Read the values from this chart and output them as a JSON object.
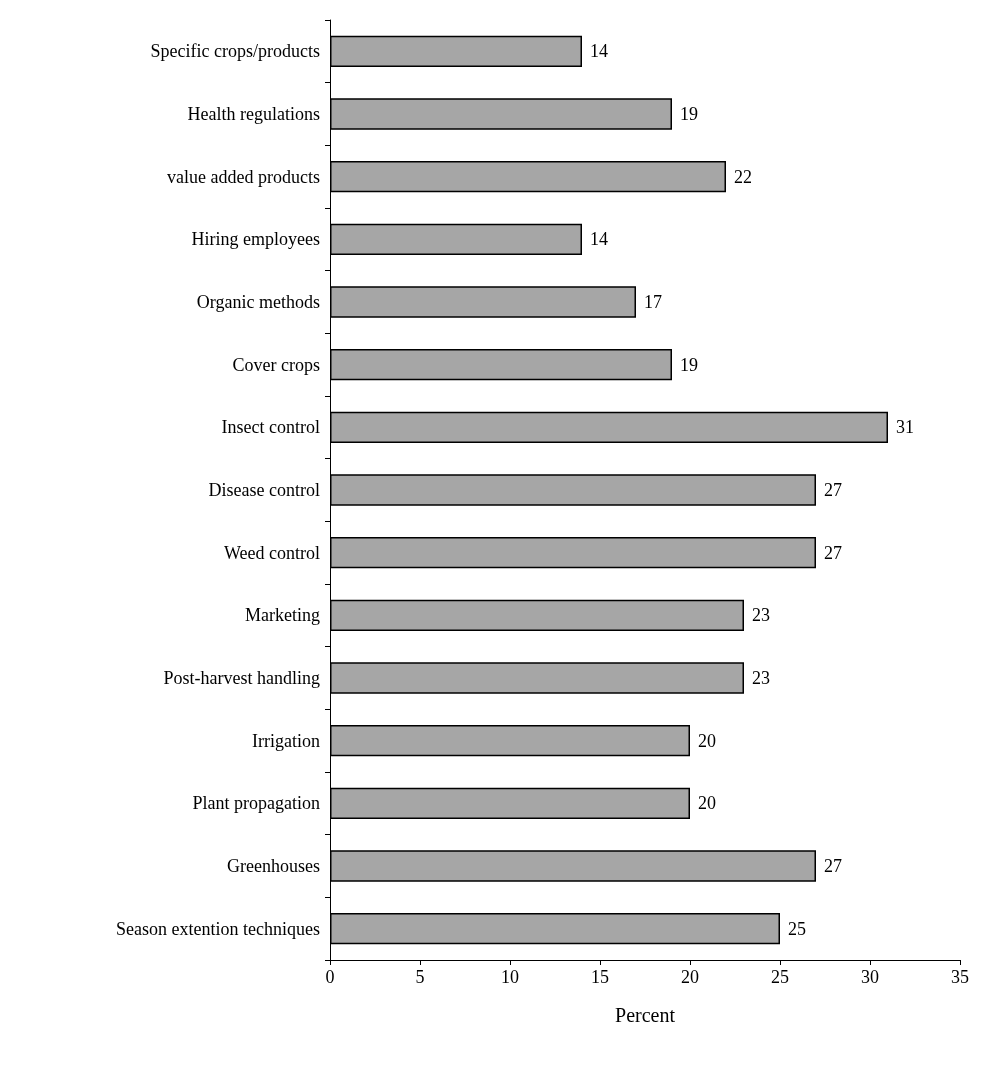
{
  "chart_data": {
    "type": "bar",
    "orientation": "horizontal",
    "xlabel": "Percent",
    "categories": [
      "Specific crops/products",
      "Health regulations",
      "value added products",
      "Hiring employees",
      "Organic methods",
      "Cover crops",
      "Insect control",
      "Disease control",
      "Weed control",
      "Marketing",
      "Post-harvest handling",
      "Irrigation",
      "Plant propagation",
      "Greenhouses",
      "Season extention techniques"
    ],
    "values": [
      14,
      19,
      22,
      14,
      17,
      19,
      31,
      27,
      27,
      23,
      23,
      20,
      20,
      27,
      25
    ],
    "color": "#a6a6a6",
    "xlim": [
      0,
      35
    ],
    "xticks": [
      0,
      5,
      10,
      15,
      20,
      25,
      30,
      35
    ],
    "grid": false,
    "data_labels": true
  }
}
